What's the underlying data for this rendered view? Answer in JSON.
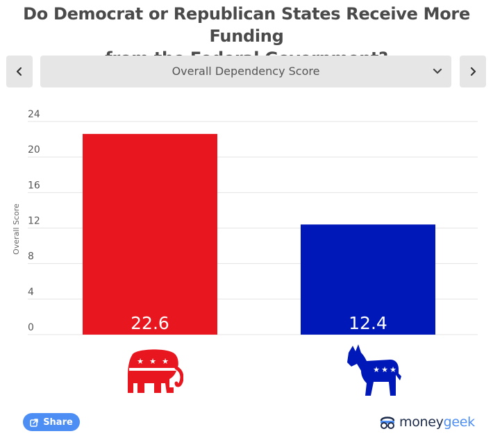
{
  "header": {
    "title_line1": "Do Democrat or Republican States Receive More Funding",
    "title_line2": "from the Federal Government?"
  },
  "controls": {
    "prev_icon": "chevron-left-icon",
    "next_icon": "chevron-right-icon",
    "dropdown_selected": "Overall Dependency Score",
    "dropdown_icon": "chevron-down-icon"
  },
  "chart_data": {
    "type": "bar",
    "categories": [
      "Republican",
      "Democrat"
    ],
    "values": [
      22.6,
      12.4
    ],
    "value_labels": [
      "22.6",
      "12.4"
    ],
    "colors": [
      "#e8171f",
      "#0118b8"
    ],
    "category_icons": [
      "elephant-icon",
      "donkey-icon"
    ],
    "title": "Do Democrat or Republican States Receive More Funding from the Federal Government?",
    "xlabel": "",
    "ylabel": "Overall Score",
    "ylim": [
      0,
      24
    ],
    "yticks": [
      0,
      4,
      8,
      12,
      16,
      20,
      24
    ],
    "grid": true
  },
  "footer": {
    "share_label": "Share",
    "share_icon": "share-icon",
    "brand_logo_icon": "moneygeek-logo-icon",
    "brand_part1": "money",
    "brand_part2": "geek"
  }
}
